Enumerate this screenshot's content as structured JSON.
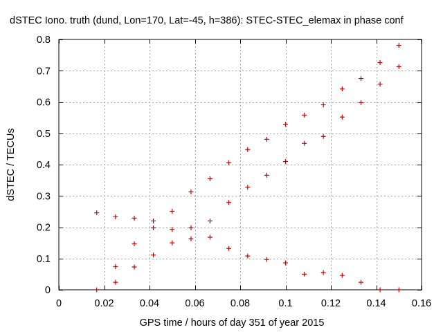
{
  "chart_data": {
    "type": "scatter",
    "title": "dSTEC Iono. truth (dund, Lon=170, Lat=-45, h=386): STEC-STEC_elemax in phase conf",
    "xlabel": "GPS time / hours of day 351 of year 2015",
    "ylabel": "dSTEC  / TECUs",
    "xlim": [
      0,
      0.16
    ],
    "ylim": [
      0,
      0.8
    ],
    "xticks": [
      0,
      0.02,
      0.04,
      0.06,
      0.08,
      0.1,
      0.12,
      0.14,
      0.16
    ],
    "xtick_labels": [
      "0",
      "0.02",
      "0.04",
      "0.06",
      "0.08",
      "0.1",
      "0.12",
      "0.14",
      "0.16"
    ],
    "yticks": [
      0,
      0.1,
      0.2,
      0.3,
      0.4,
      0.5,
      0.6,
      0.7,
      0.8
    ],
    "ytick_labels": [
      "0",
      "0.1",
      "0.2",
      "0.3",
      "0.4",
      "0.5",
      "0.6",
      "0.7",
      "0.8"
    ],
    "grid": true,
    "legend": "none",
    "marker_color": "#cc0000",
    "marker": "plus",
    "series": [
      {
        "x": [
          0.0167,
          0.025,
          0.0333,
          0.0417,
          0.05,
          0.0583,
          0.0667,
          0.075,
          0.0833,
          0.0917,
          0.1,
          0.1083,
          0.1167,
          0.125,
          0.1333,
          0.1417,
          0.15
        ],
        "y": [
          0.246,
          0.233,
          0.229,
          0.22,
          0.251,
          0.313,
          0.355,
          0.406,
          0.448,
          0.481,
          0.529,
          0.558,
          0.591,
          0.642,
          0.675,
          0.726,
          0.781
        ]
      },
      {
        "x": [
          0.025,
          0.0333,
          0.0417,
          0.05,
          0.0583,
          0.0667,
          0.075,
          0.0833,
          0.0917,
          0.1,
          0.1083,
          0.1167,
          0.125,
          0.1333,
          0.1417,
          0.15
        ],
        "y": [
          0.074,
          0.073,
          0.198,
          0.193,
          0.198,
          0.22,
          0.279,
          0.328,
          0.366,
          0.41,
          0.468,
          0.49,
          0.552,
          0.598,
          0.657,
          0.713
        ]
      },
      {
        "x": [
          0.0167,
          0.025,
          0.0333,
          0.0417,
          0.05,
          0.0583,
          0.0667,
          0.075,
          0.0833,
          0.0917,
          0.1,
          0.1083,
          0.1167,
          0.125,
          0.1333,
          0.1417,
          0.15
        ],
        "y": [
          0.0,
          0.024,
          0.147,
          0.111,
          0.15,
          0.163,
          0.168,
          0.132,
          0.108,
          0.097,
          0.086,
          0.05,
          0.055,
          0.046,
          0.024,
          0.0,
          0.0
        ]
      }
    ]
  }
}
